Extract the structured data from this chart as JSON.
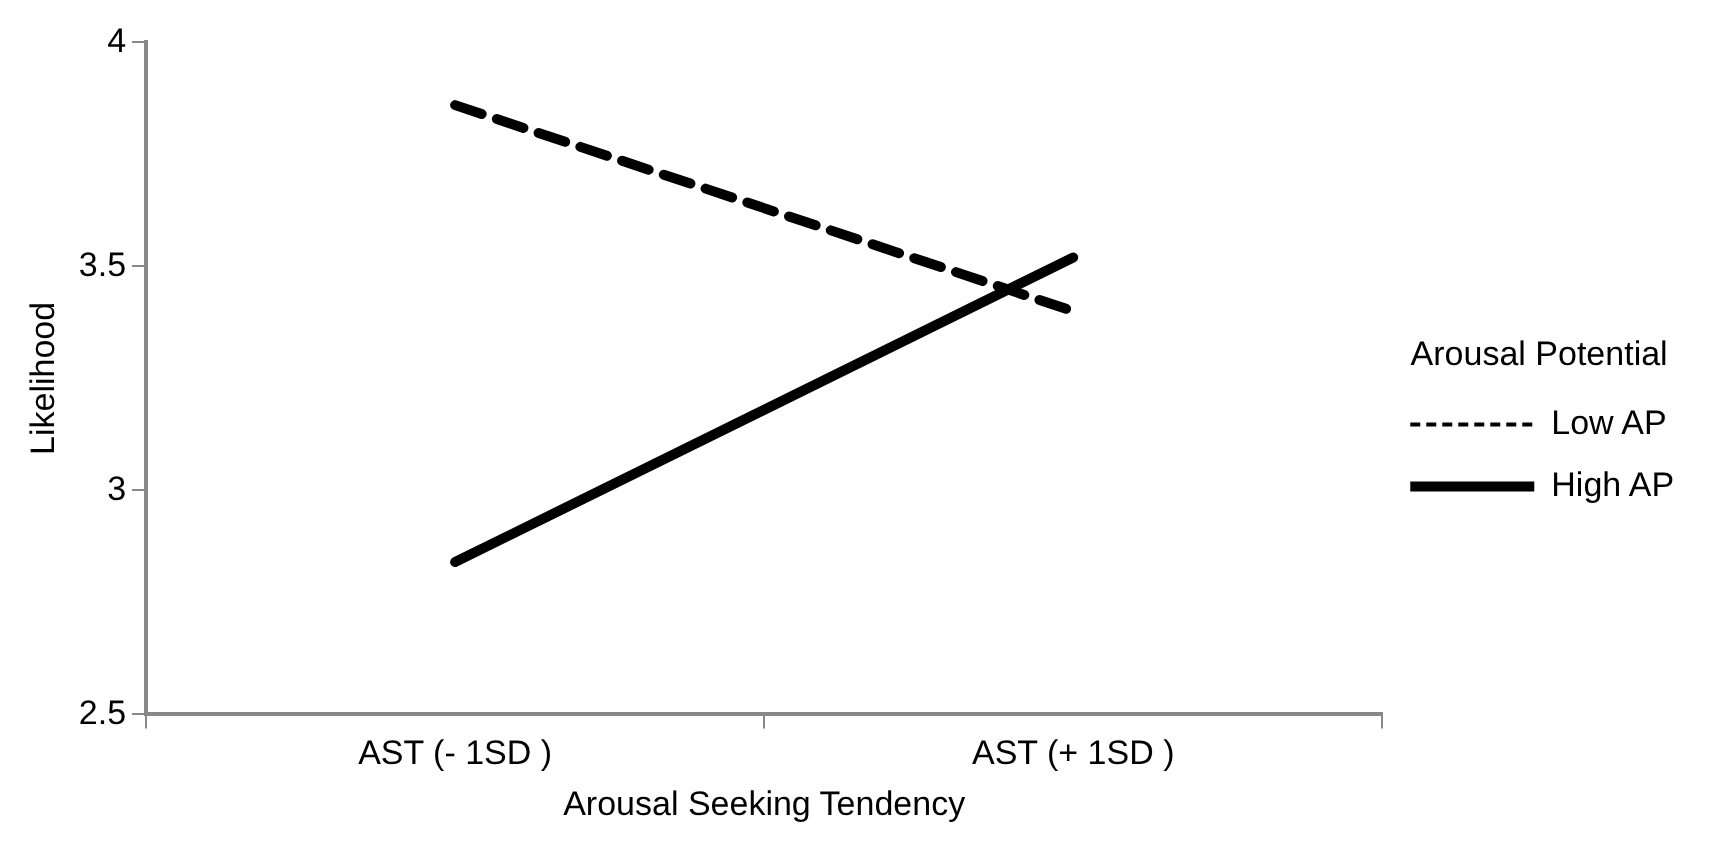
{
  "chart_data": {
    "type": "line",
    "xlabel": "Arousal Seeking Tendency",
    "ylabel": "Likelihood",
    "legend_title": "Arousal Potential",
    "categories": [
      "AST (- 1SD )",
      "AST (+ 1SD )"
    ],
    "series": [
      {
        "name": "Low AP",
        "color": "#000000",
        "values": [
          3.86,
          3.4
        ],
        "line_style": "dashed"
      },
      {
        "name": "High AP",
        "color": "#000000",
        "values": [
          2.84,
          3.52
        ],
        "line_style": "solid"
      }
    ],
    "ylim": [
      2.5,
      4
    ],
    "yticks": [
      2.5,
      3,
      3.5,
      4
    ],
    "grid": false,
    "legend": "right",
    "marker": "none"
  }
}
